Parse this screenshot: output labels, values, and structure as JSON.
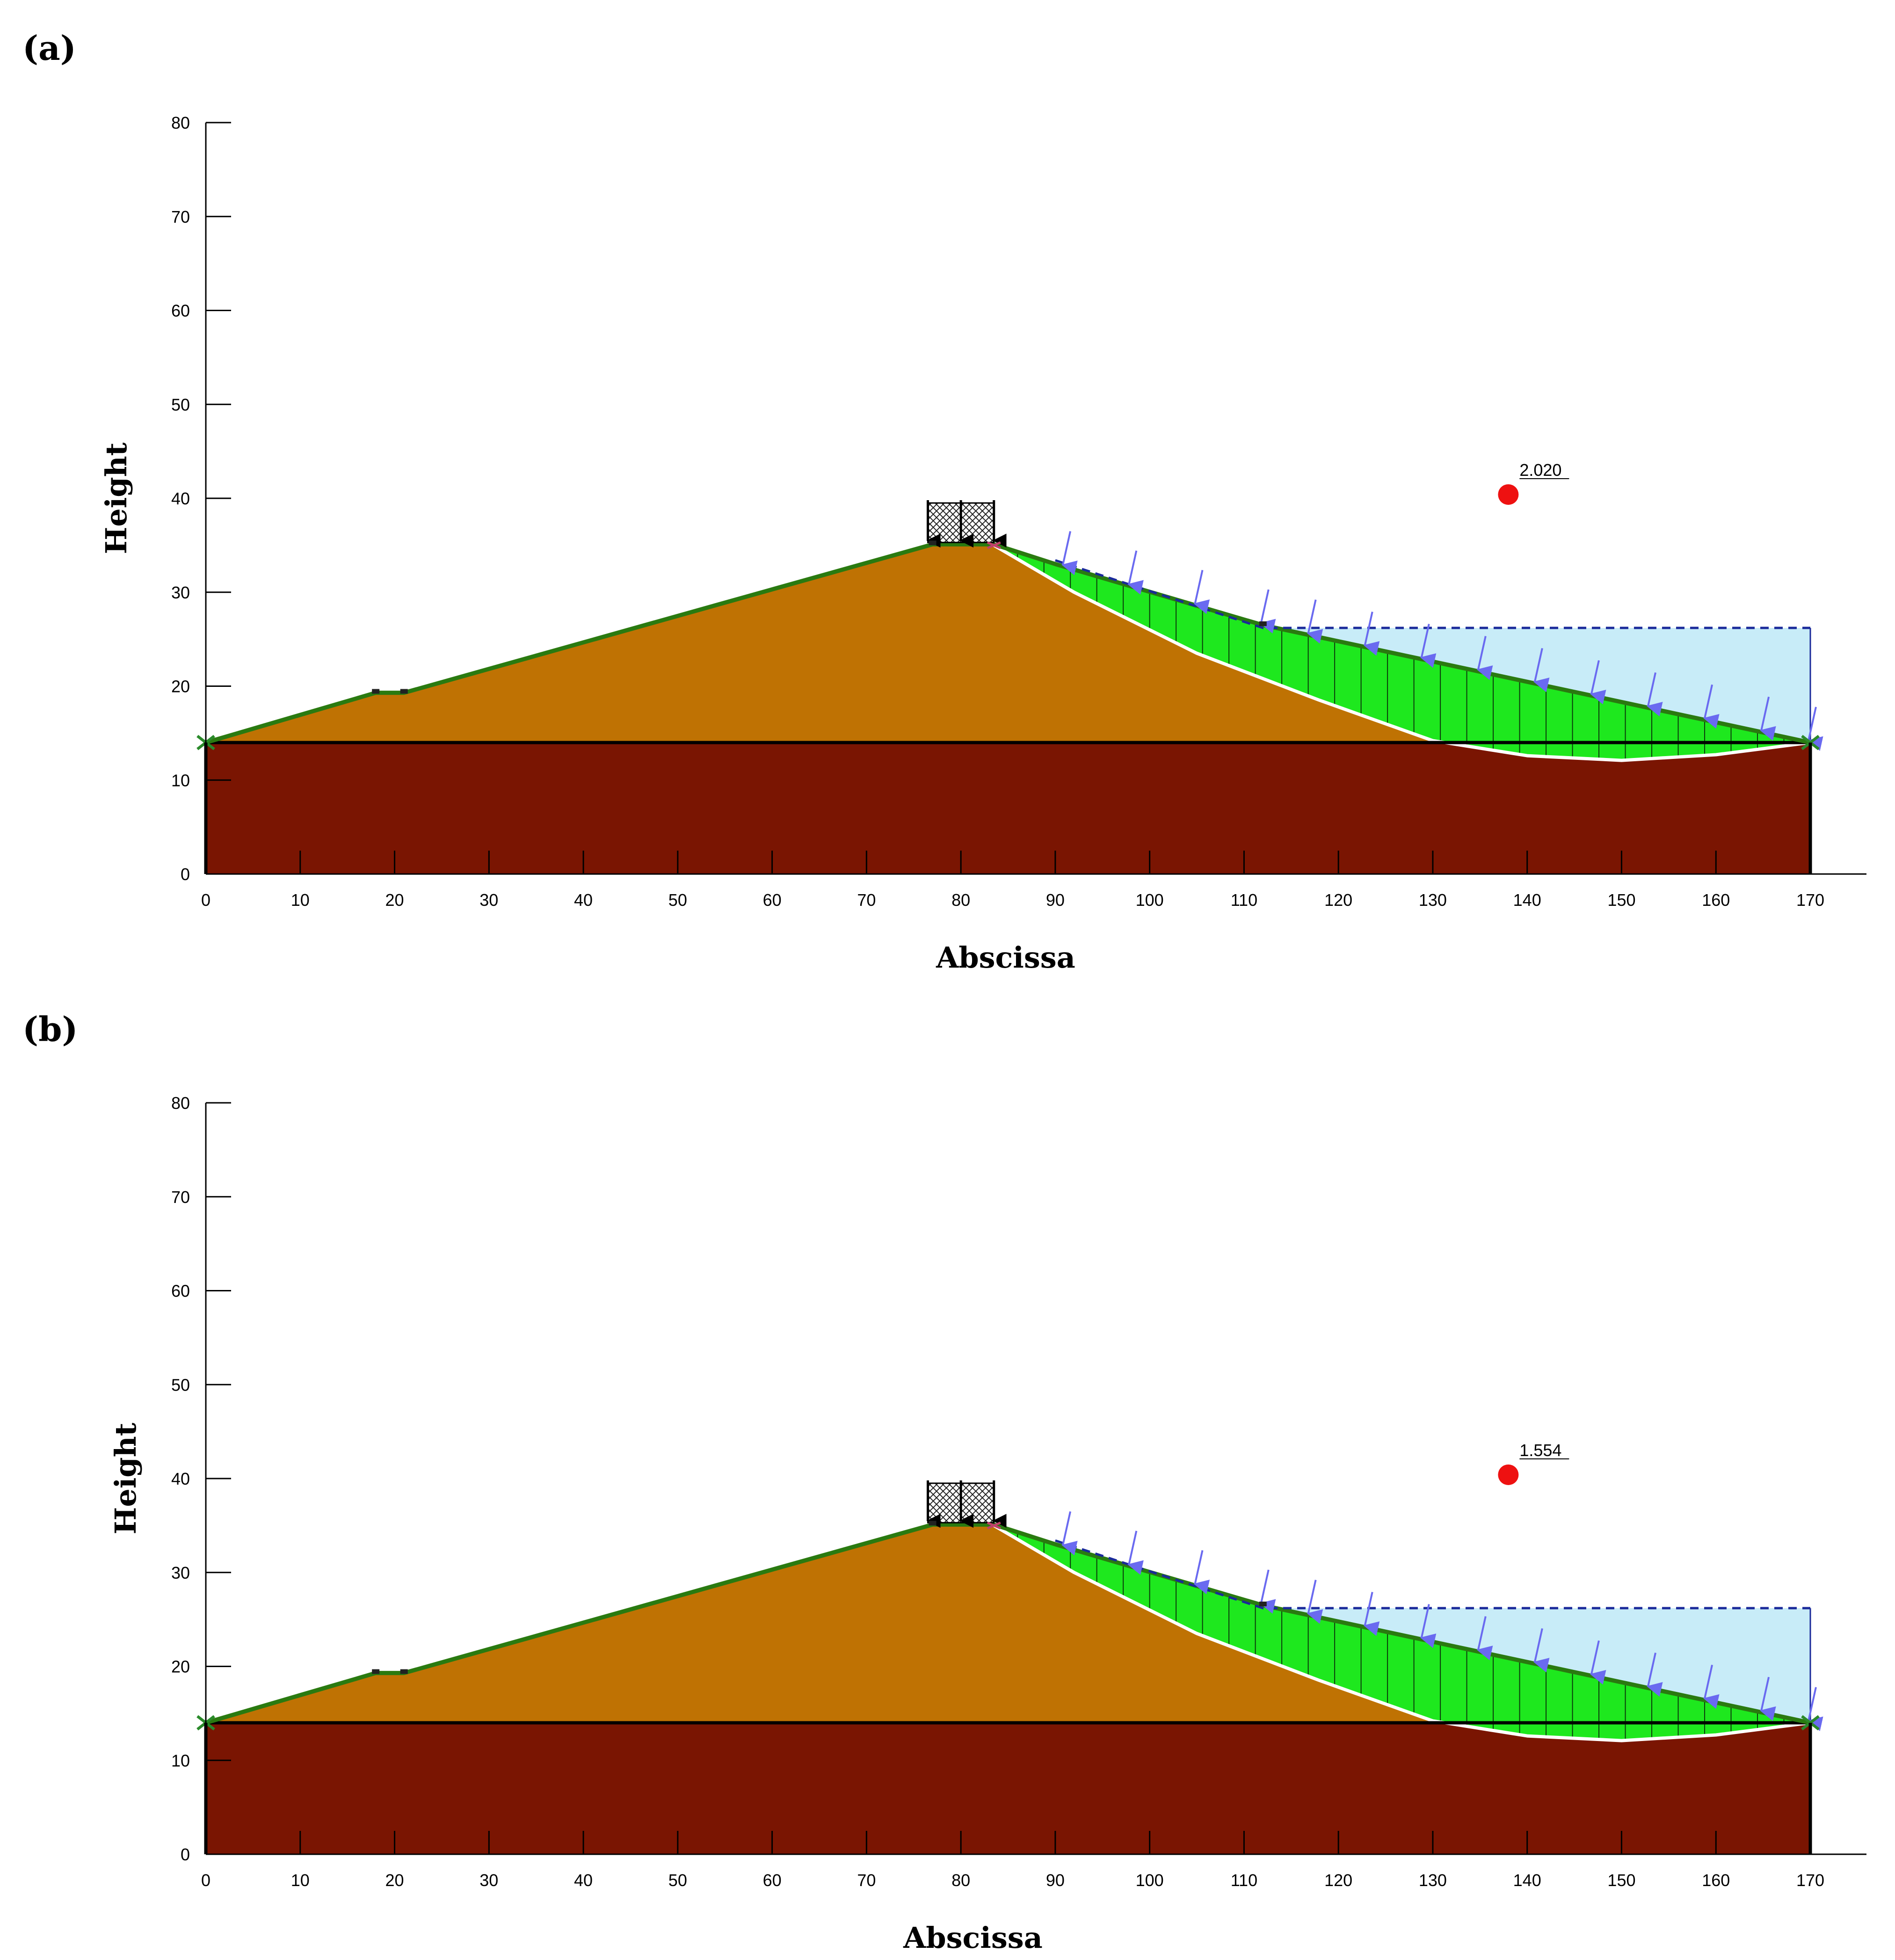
{
  "panels": [
    {
      "label": "(a)",
      "factor_of_safety": "2.020",
      "xlabel": "Abscissa",
      "ylabel": "Height"
    },
    {
      "label": "(b)",
      "factor_of_safety": "1.554",
      "xlabel": "Abscissa",
      "ylabel": "Height"
    }
  ],
  "axes": {
    "x_ticks": [
      "0",
      "10",
      "20",
      "30",
      "40",
      "50",
      "60",
      "70",
      "80",
      "90",
      "100",
      "110",
      "120",
      "130",
      "140",
      "150",
      "160",
      "170"
    ],
    "y_ticks": [
      "0",
      "10",
      "20",
      "30",
      "40",
      "50",
      "60",
      "70",
      "80"
    ],
    "xlim": [
      0,
      170
    ],
    "ylim": [
      0,
      80
    ]
  },
  "geometry": {
    "foundation_top_y": 14,
    "ground_profile": [
      [
        0,
        14
      ],
      [
        18,
        19.3
      ],
      [
        21,
        19.3
      ],
      [
        77,
        35.1
      ],
      [
        83.5,
        35.1
      ],
      [
        90,
        33
      ],
      [
        112,
        26.5
      ],
      [
        170,
        14
      ]
    ],
    "slip_surface": [
      [
        83.5,
        35
      ],
      [
        92,
        30
      ],
      [
        105,
        23.5
      ],
      [
        118,
        18.5
      ],
      [
        130,
        14.2
      ],
      [
        140,
        12.6
      ],
      [
        150,
        12.1
      ],
      [
        160,
        12.7
      ],
      [
        170,
        14
      ]
    ],
    "water_level_y": 26.2,
    "water_line_start_x": 90,
    "water_line_end_x": 170,
    "fos_center": [
      138,
      40.4
    ],
    "load_span": [
      76.5,
      83.5
    ],
    "load_height": 4.2,
    "water_arrow_x": [
      91,
      98,
      105,
      112,
      117,
      123,
      129,
      135,
      141,
      147,
      153,
      159,
      165,
      170
    ]
  },
  "colors": {
    "embankment": "#bf7203",
    "foundation": "#7a1502",
    "sliding_mass": "#1ee81e",
    "ground_line": "#2a7a10",
    "water": "#c8ecf8",
    "water_line": "#1a2a9a",
    "water_arrow": "#6a6af0",
    "center_point": "#ee1111"
  }
}
